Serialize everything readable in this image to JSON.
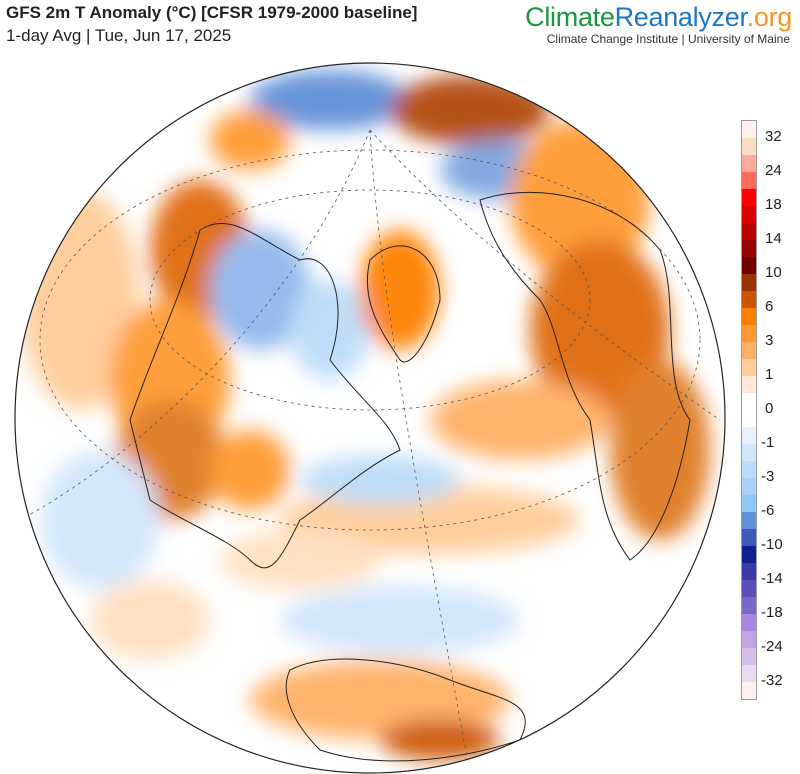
{
  "header": {
    "title": "GFS 2m T Anomaly (°C) [CFSR 1979-2000 baseline]",
    "subtitle": "1-day Avg | Tue, Jun 17, 2025",
    "logo": {
      "part1": "Climate",
      "part2": "Reanalyzer",
      "part3": ".org"
    },
    "organization": "Climate Change Institute | University of Maine"
  },
  "legend": {
    "labels": [
      "32",
      "24",
      "18",
      "14",
      "10",
      "6",
      "3",
      "1",
      "0",
      "-1",
      "-3",
      "-6",
      "-10",
      "-14",
      "-18",
      "-24",
      "-32"
    ],
    "colors": [
      "#fff0ee",
      "#fbdcc4",
      "#ffa89c",
      "#ff6a5e",
      "#ff0000",
      "#dd0000",
      "#bb0000",
      "#990000",
      "#720000",
      "#993300",
      "#cc5500",
      "#ff8000",
      "#ff9a33",
      "#ffb066",
      "#ffcc99",
      "#ffe8d8",
      "#ffffff",
      "#ffffff",
      "#e8f2ff",
      "#d2e6fb",
      "#bcdcf8",
      "#a8d2f8",
      "#8fc6f8",
      "#6090d8",
      "#3d5ab8",
      "#102090",
      "#3a3aa8",
      "#5a50b8",
      "#7a6ac8",
      "#a888e0",
      "#c2a2e2",
      "#d6bee8",
      "#eadaf0",
      "#fff0f0"
    ]
  }
}
